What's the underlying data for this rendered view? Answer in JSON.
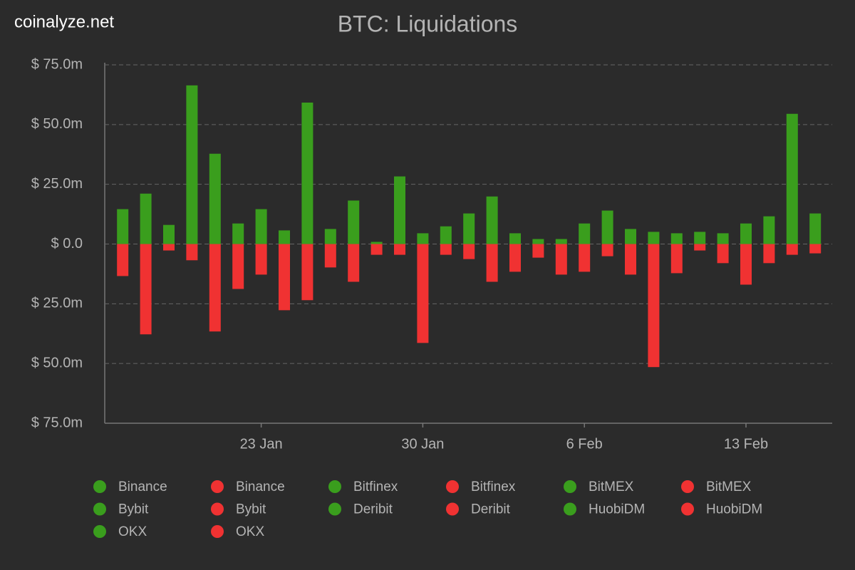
{
  "brand": "coinalyze.net",
  "chart_data": {
    "type": "bar",
    "stacked": false,
    "title": "BTC: Liquidations",
    "categories": [
      null,
      null,
      null,
      null,
      null,
      null,
      "23 Jan",
      null,
      null,
      null,
      null,
      null,
      null,
      "30 Jan",
      null,
      null,
      null,
      null,
      null,
      null,
      "6 Feb",
      null,
      null,
      null,
      null,
      null,
      null,
      "13 Feb",
      null,
      null,
      null
    ],
    "series": [
      {
        "color": "#3a9e1d",
        "values": [
          14.6,
          21.1,
          8.0,
          66.4,
          37.8,
          8.6,
          14.6,
          5.7,
          59.2,
          6.3,
          18.2,
          0.9,
          28.3,
          4.5,
          7.4,
          12.8,
          19.9,
          4.5,
          2.1,
          2.1,
          8.6,
          14.0,
          6.3,
          5.1,
          4.5,
          5.1,
          4.5,
          8.6,
          11.6,
          54.5,
          12.8
        ]
      },
      {
        "color": "#f03232",
        "values": [
          -13.4,
          -37.8,
          -2.7,
          -6.8,
          -36.6,
          -18.8,
          -12.8,
          -27.7,
          -23.5,
          -9.8,
          -15.8,
          -4.5,
          -4.5,
          -41.4,
          -4.5,
          -6.3,
          -15.8,
          -11.6,
          -5.7,
          -12.8,
          -11.6,
          -5.1,
          -12.8,
          -51.5,
          -12.2,
          -2.7,
          -8.0,
          -17.0,
          -8.0,
          -4.5,
          -3.9
        ]
      }
    ],
    "ylim": [
      -75,
      75
    ],
    "yticks": [
      {
        "value": -75,
        "label": "$ 75.0m"
      },
      {
        "value": -50,
        "label": "$ 50.0m"
      },
      {
        "value": -25,
        "label": "$ 25.0m"
      },
      {
        "value": 0,
        "label": "$ 0.0"
      },
      {
        "value": 25,
        "label": "$ 25.0m"
      },
      {
        "value": 50,
        "label": "$ 50.0m"
      },
      {
        "value": 75,
        "label": "$ 75.0m"
      }
    ],
    "grid": true,
    "legend": [
      {
        "label": "Binance",
        "color": "#3a9e1d"
      },
      {
        "label": "Binance",
        "color": "#f03232"
      },
      {
        "label": "Bitfinex",
        "color": "#3a9e1d"
      },
      {
        "label": "Bitfinex",
        "color": "#f03232"
      },
      {
        "label": "BitMEX",
        "color": "#3a9e1d"
      },
      {
        "label": "BitMEX",
        "color": "#f03232"
      },
      {
        "label": "Bybit",
        "color": "#3a9e1d"
      },
      {
        "label": "Bybit",
        "color": "#f03232"
      },
      {
        "label": "Deribit",
        "color": "#3a9e1d"
      },
      {
        "label": "Deribit",
        "color": "#f03232"
      },
      {
        "label": "HuobiDM",
        "color": "#3a9e1d"
      },
      {
        "label": "HuobiDM",
        "color": "#f03232"
      },
      {
        "label": "OKX",
        "color": "#3a9e1d"
      },
      {
        "label": "OKX",
        "color": "#f03232"
      }
    ]
  }
}
